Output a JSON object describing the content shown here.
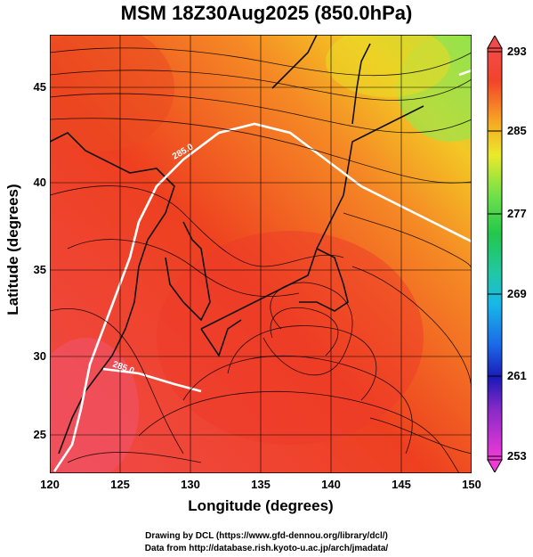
{
  "title": "MSM 18Z30Aug2025 (850.0hPa)",
  "xlabel": "Longitude (degrees)",
  "ylabel": "Latitude  (degrees)",
  "x_ticks": [
    "120",
    "125",
    "130",
    "135",
    "140",
    "145",
    "150"
  ],
  "y_ticks": [
    "25",
    "30",
    "35",
    "40",
    "45"
  ],
  "colorbar_ticks": [
    "293",
    "285",
    "277",
    "269",
    "261",
    "253"
  ],
  "contour_labels": [
    "285.0",
    "285.0"
  ],
  "credits": {
    "line1": "Drawing by DCL (https://www.gfd-dennou.org/library/dcl/)",
    "line2": "Data from http://database.rish.kyoto-u.ac.jp/arch/jmadata/"
  },
  "colors": {
    "warm": "#e8321e",
    "hot": "#f04a5a",
    "mid": "#f7a823",
    "cool": "#78e04a",
    "contour": "#ffffff"
  }
}
